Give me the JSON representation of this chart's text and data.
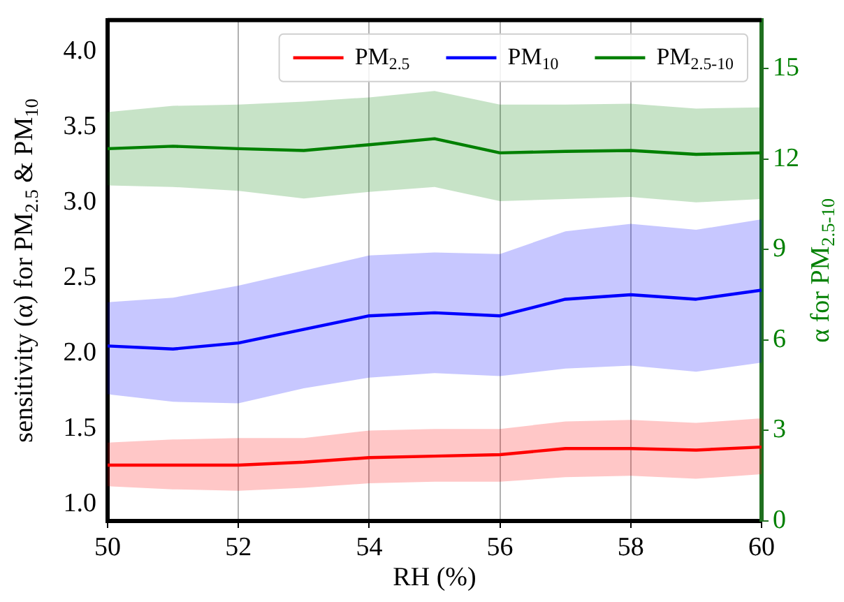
{
  "chart_data": {
    "type": "line",
    "xlabel": "RH (%)",
    "ylabel": "sensitivity (α) for PM$_{2.5}$ & PM$_{10}$",
    "y2label": "α for PM$_{2.5-10}$",
    "x": [
      50,
      51,
      52,
      53,
      54,
      55,
      56,
      57,
      58,
      59,
      60
    ],
    "series": [
      {
        "name": "PM$_{2.5}$",
        "color": "#ff0000",
        "values": [
          1.26,
          1.26,
          1.26,
          1.28,
          1.31,
          1.32,
          1.33,
          1.37,
          1.37,
          1.36,
          1.38
        ],
        "lower": [
          1.12,
          1.1,
          1.09,
          1.11,
          1.14,
          1.15,
          1.15,
          1.18,
          1.19,
          1.17,
          1.2
        ],
        "upper": [
          1.41,
          1.43,
          1.44,
          1.44,
          1.49,
          1.5,
          1.5,
          1.55,
          1.56,
          1.54,
          1.57
        ]
      },
      {
        "name": "PM$_{10}$",
        "color": "#0000ff",
        "values": [
          2.05,
          2.03,
          2.07,
          2.16,
          2.25,
          2.27,
          2.25,
          2.36,
          2.39,
          2.36,
          2.42
        ],
        "lower": [
          1.73,
          1.68,
          1.67,
          1.77,
          1.84,
          1.87,
          1.85,
          1.9,
          1.92,
          1.88,
          1.94
        ],
        "upper": [
          2.34,
          2.37,
          2.45,
          2.55,
          2.65,
          2.67,
          2.66,
          2.81,
          2.86,
          2.82,
          2.89
        ]
      },
      {
        "name": "PM$_{2.5-10}$",
        "color": "#008000",
        "axis": "y2",
        "values": [
          12.34,
          12.42,
          12.34,
          12.28,
          12.47,
          12.67,
          12.2,
          12.25,
          12.28,
          12.15,
          12.2
        ],
        "lower": [
          11.12,
          11.07,
          10.94,
          10.69,
          10.91,
          11.07,
          10.6,
          10.67,
          10.74,
          10.56,
          10.67
        ],
        "upper": [
          13.55,
          13.76,
          13.8,
          13.9,
          14.04,
          14.25,
          13.8,
          13.8,
          13.83,
          13.67,
          13.71
        ]
      }
    ],
    "xlim": [
      50,
      60
    ],
    "xticks": [
      50,
      52,
      54,
      56,
      58,
      60
    ],
    "ylim": [
      0.89,
      4.21
    ],
    "yticks": [
      {
        "value": 1,
        "label": "1.0"
      },
      1.5,
      {
        "value": 2,
        "label": "2.0"
      },
      2.5,
      {
        "value": 3,
        "label": "3.0"
      },
      3.5,
      {
        "value": 4,
        "label": "4.0"
      }
    ],
    "y2lim": [
      0,
      16.6
    ],
    "y2ticks": [
      0,
      3,
      6,
      9,
      12,
      15
    ],
    "grid": "x",
    "legend": "top right",
    "marker": "none",
    "line_style": "solid"
  }
}
